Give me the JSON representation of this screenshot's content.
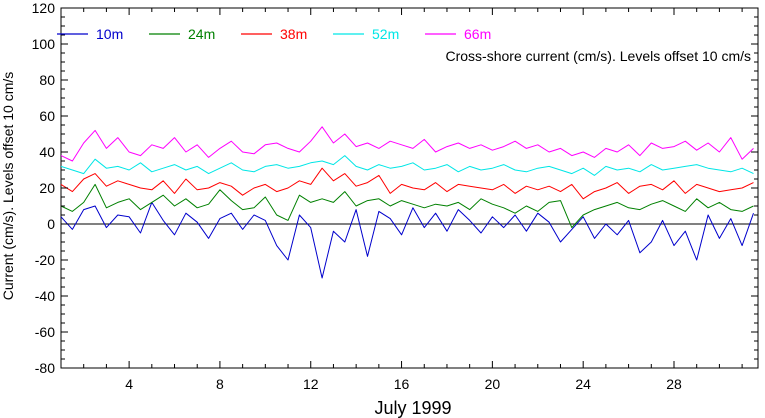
{
  "chart_data": {
    "type": "line",
    "title": "",
    "annotation": "Cross-shore current (cm/s). Levels offset 10 cm/s",
    "xlabel": "July 1999",
    "ylabel": "Current (cm/s). Levels offset 10 cm/s",
    "xlim": [
      1,
      31.7
    ],
    "ylim": [
      -80,
      120
    ],
    "xticks": [
      4,
      8,
      12,
      16,
      20,
      24,
      28
    ],
    "xticklabels": [
      "4",
      "8",
      "12",
      "16",
      "20",
      "24",
      "28"
    ],
    "yticks": [
      -80,
      -60,
      -40,
      -20,
      0,
      20,
      40,
      60,
      80,
      100,
      120
    ],
    "yticklabels": [
      "-80",
      "-60",
      "-40",
      "-20",
      "0",
      "20",
      "40",
      "60",
      "80",
      "100",
      "120"
    ],
    "zero_line": 0,
    "grid": false,
    "legend_placement": "top-left",
    "x": [
      1,
      1.5,
      2,
      2.5,
      3,
      3.5,
      4,
      4.5,
      5,
      5.5,
      6,
      6.5,
      7,
      7.5,
      8,
      8.5,
      9,
      9.5,
      10,
      10.5,
      11,
      11.5,
      12,
      12.5,
      13,
      13.5,
      14,
      14.5,
      15,
      15.5,
      16,
      16.5,
      17,
      17.5,
      18,
      18.5,
      19,
      19.5,
      20,
      20.5,
      21,
      21.5,
      22,
      22.5,
      23,
      23.5,
      24,
      24.5,
      25,
      25.5,
      26,
      26.5,
      27,
      27.5,
      28,
      28.5,
      29,
      29.5,
      30,
      30.5,
      31,
      31.5
    ],
    "series": [
      {
        "name": "10m",
        "color": "#0000cc",
        "values": [
          4,
          -3,
          8,
          10,
          -2,
          5,
          4,
          -5,
          12,
          2,
          -6,
          6,
          1,
          -8,
          3,
          6,
          -3,
          5,
          2,
          -12,
          -20,
          5,
          -2,
          -30,
          -4,
          -10,
          8,
          -18,
          7,
          3,
          -6,
          9,
          -2,
          6,
          -4,
          8,
          2,
          -5,
          4,
          -2,
          5,
          -4,
          6,
          1,
          -10,
          -3,
          4,
          -8,
          0,
          -6,
          2,
          -16,
          -10,
          2,
          -12,
          -4,
          -20,
          5,
          -8,
          3,
          -12,
          6
        ]
      },
      {
        "name": "24m",
        "color": "#008000",
        "values": [
          10,
          7,
          12,
          22,
          9,
          12,
          14,
          8,
          12,
          16,
          10,
          14,
          9,
          11,
          19,
          13,
          8,
          9,
          15,
          5,
          2,
          16,
          12,
          14,
          12,
          18,
          10,
          13,
          14,
          10,
          13,
          11,
          9,
          11,
          10,
          12,
          8,
          14,
          11,
          9,
          6,
          10,
          7,
          12,
          13,
          -2,
          5,
          8,
          10,
          12,
          9,
          8,
          11,
          13,
          10,
          7,
          14,
          9,
          12,
          8,
          7,
          10
        ]
      },
      {
        "name": "38m",
        "color": "#ff0000",
        "values": [
          22,
          18,
          25,
          28,
          21,
          24,
          22,
          20,
          19,
          24,
          17,
          25,
          19,
          20,
          23,
          21,
          16,
          20,
          22,
          18,
          20,
          24,
          22,
          31,
          24,
          28,
          21,
          23,
          27,
          17,
          22,
          20,
          19,
          23,
          18,
          22,
          21,
          20,
          19,
          22,
          17,
          21,
          19,
          21,
          18,
          22,
          14,
          18,
          20,
          23,
          17,
          21,
          22,
          19,
          24,
          17,
          22,
          20,
          18,
          19,
          20,
          23
        ]
      },
      {
        "name": "52m",
        "color": "#00e6e6",
        "values": [
          32,
          30,
          28,
          36,
          31,
          32,
          30,
          34,
          29,
          31,
          33,
          30,
          32,
          28,
          31,
          34,
          30,
          29,
          32,
          33,
          31,
          32,
          34,
          35,
          33,
          38,
          32,
          30,
          33,
          31,
          32,
          34,
          30,
          31,
          33,
          29,
          32,
          30,
          31,
          33,
          30,
          29,
          31,
          32,
          30,
          28,
          31,
          27,
          32,
          30,
          31,
          29,
          33,
          30,
          31,
          32,
          33,
          31,
          30,
          29,
          31,
          28
        ]
      },
      {
        "name": "66m",
        "color": "#ff00ff",
        "values": [
          38,
          35,
          45,
          52,
          42,
          48,
          40,
          38,
          44,
          42,
          48,
          40,
          44,
          37,
          42,
          46,
          40,
          39,
          44,
          45,
          42,
          40,
          46,
          54,
          45,
          50,
          43,
          45,
          42,
          46,
          44,
          42,
          47,
          40,
          43,
          45,
          42,
          44,
          41,
          43,
          46,
          42,
          44,
          40,
          42,
          38,
          40,
          37,
          42,
          40,
          44,
          38,
          45,
          42,
          43,
          46,
          41,
          45,
          40,
          48,
          36,
          42
        ]
      }
    ]
  }
}
